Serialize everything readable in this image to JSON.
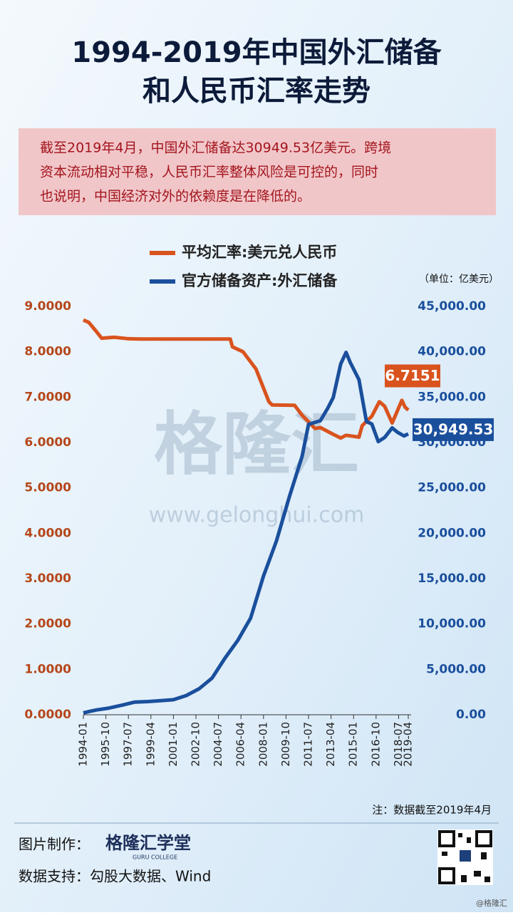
{
  "header": {
    "title_lines": [
      "1994-2019年中国外汇储备",
      "和人民币汇率走势"
    ]
  },
  "note": {
    "lines": [
      "截至2019年4月，中国外汇储备达30949.53亿美元。跨境",
      "资本流动相对平稳，人民币汇率整体风险是可控的，同时",
      "也说明，中国经济对外的依赖度是在降低的。"
    ]
  },
  "chart_data": {
    "type": "line",
    "unit_label": "（单位：亿美元）",
    "xlim": [
      "1994-01",
      "2019-04"
    ],
    "xticks": [
      "1994-01",
      "1995-10",
      "1997-07",
      "1999-04",
      "2001-01",
      "2002-10",
      "2004-07",
      "2006-04",
      "2008-01",
      "2009-10",
      "2011-07",
      "2013-04",
      "2015-01",
      "2016-10",
      "2018-07",
      "2019-04"
    ],
    "ylim": [
      0,
      9
    ],
    "yticks": [
      {
        "value": 0,
        "label": "0.0000"
      },
      {
        "value": 1,
        "label": "1.0000"
      },
      {
        "value": 2,
        "label": "2.0000"
      },
      {
        "value": 3,
        "label": "3.0000"
      },
      {
        "value": 4,
        "label": "4.0000"
      },
      {
        "value": 5,
        "label": "5.0000"
      },
      {
        "value": 6,
        "label": "6.0000"
      },
      {
        "value": 7,
        "label": "7.0000"
      },
      {
        "value": 8,
        "label": "8.0000"
      },
      {
        "value": 9,
        "label": "9.0000"
      }
    ],
    "y2lim": [
      0,
      45000
    ],
    "y2ticks": [
      {
        "value": 0,
        "label": "0.00"
      },
      {
        "value": 5000,
        "label": "5,000.00"
      },
      {
        "value": 10000,
        "label": "10,000.00"
      },
      {
        "value": 15000,
        "label": "15,000.00"
      },
      {
        "value": 20000,
        "label": "20,000.00"
      },
      {
        "value": 25000,
        "label": "25,000.00"
      },
      {
        "value": 30000,
        "label": "30,000.00"
      },
      {
        "value": 35000,
        "label": "35,000.00"
      },
      {
        "value": 40000,
        "label": "40,000.00"
      },
      {
        "value": 45000,
        "label": "45,000.00"
      }
    ],
    "grid": false,
    "series": [
      {
        "name": "平均汇率:美元兑人民币",
        "color": "#d9531e",
        "axis": "y",
        "x": [
          "1994-01",
          "1994-06",
          "1995-01",
          "1995-06",
          "1996-06",
          "1997-06",
          "1998-06",
          "2005-06",
          "2005-08",
          "2006-06",
          "2007-06",
          "2008-06",
          "2008-09",
          "2010-06",
          "2011-01",
          "2012-01",
          "2012-06",
          "2013-06",
          "2014-01",
          "2014-06",
          "2015-06",
          "2015-09",
          "2016-06",
          "2017-01",
          "2017-06",
          "2018-01",
          "2018-10",
          "2019-01",
          "2019-04"
        ],
        "values": [
          8.7,
          8.65,
          8.45,
          8.3,
          8.32,
          8.29,
          8.28,
          8.28,
          8.11,
          8.0,
          7.62,
          6.9,
          6.83,
          6.82,
          6.6,
          6.31,
          6.33,
          6.18,
          6.1,
          6.16,
          6.12,
          6.37,
          6.58,
          6.9,
          6.8,
          6.43,
          6.93,
          6.78,
          6.7151
        ],
        "value_labels": [
          null,
          null,
          null,
          null,
          null,
          null,
          null,
          null,
          null,
          null,
          null,
          null,
          null,
          null,
          null,
          null,
          null,
          null,
          null,
          null,
          null,
          null,
          null,
          null,
          null,
          null,
          null,
          null,
          "6.7151"
        ]
      },
      {
        "name": "官方储备资产:外汇储备",
        "color": "#1a4f9c",
        "axis": "y2",
        "x": [
          "1994-01",
          "1995-01",
          "1996-01",
          "1997-01",
          "1998-01",
          "1999-01",
          "2000-01",
          "2001-01",
          "2002-01",
          "2003-01",
          "2004-01",
          "2005-01",
          "2006-01",
          "2007-01",
          "2008-01",
          "2009-01",
          "2010-01",
          "2011-01",
          "2011-07",
          "2012-06",
          "2013-01",
          "2013-06",
          "2014-01",
          "2014-06",
          "2014-10",
          "2015-06",
          "2016-01",
          "2016-06",
          "2016-12",
          "2017-06",
          "2018-01",
          "2018-06",
          "2018-12",
          "2019-04"
        ],
        "values": [
          212,
          530,
          736,
          1050,
          1399,
          1450,
          1547,
          1656,
          2122,
          2864,
          4033,
          6236,
          8189,
          10663,
          15282,
          19134,
          23992,
          28473,
          32000,
          32400,
          33800,
          34967,
          38666,
          39932,
          38800,
          36938,
          32309,
          32052,
          30105,
          30568,
          31614,
          31121,
          30727,
          30949.53
        ],
        "value_labels": [
          null,
          null,
          null,
          null,
          null,
          null,
          null,
          null,
          null,
          null,
          null,
          null,
          null,
          null,
          null,
          null,
          null,
          null,
          null,
          null,
          null,
          null,
          null,
          null,
          null,
          null,
          null,
          null,
          null,
          null,
          null,
          null,
          null,
          "30,949.53"
        ]
      }
    ]
  },
  "watermark": {
    "name": "格隆汇",
    "url": "www.gelonghui.com"
  },
  "footnote": "注：数据截至2019年4月",
  "footer": {
    "maker_label": "图片制作：",
    "maker_name": "格隆汇学堂",
    "maker_sub": "GURU COLLEGE",
    "source": "数据支持：勾股大数据、Wind",
    "credit": "@格隆汇"
  }
}
